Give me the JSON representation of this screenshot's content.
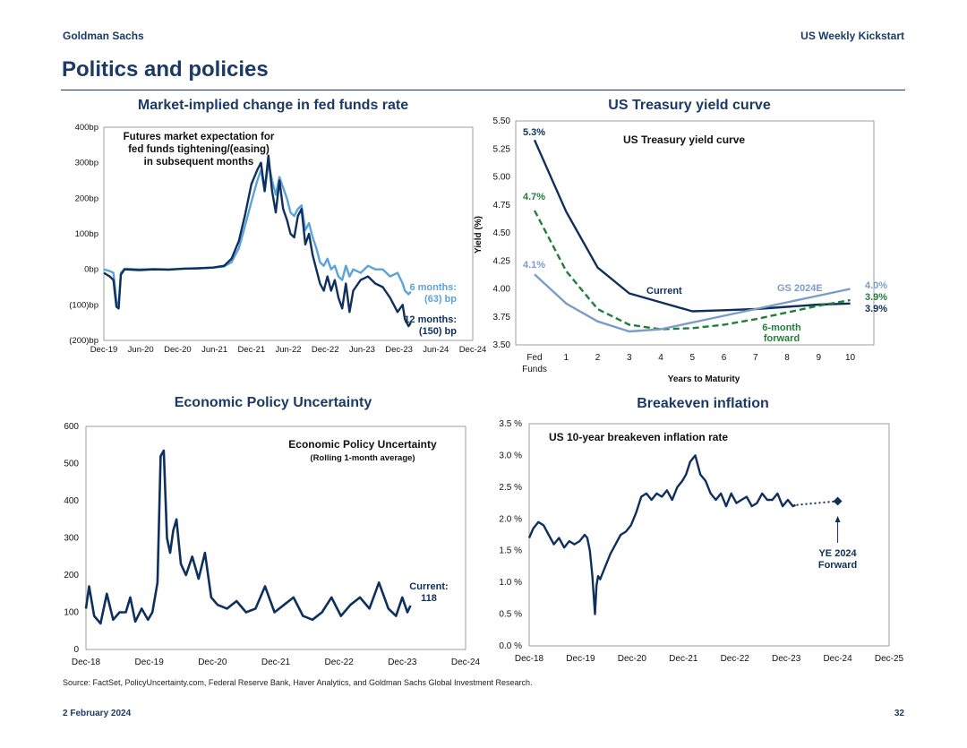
{
  "header": {
    "brand": "Goldman Sachs",
    "report": "US Weekly Kickstart"
  },
  "page_title": "Politics and policies",
  "footer": {
    "source": "Source: FactSet, PolicyUncertainty.com, Federal Reserve Bank, Haver Analytics, and Goldman Sachs Global Investment Research.",
    "date": "2 February 2024",
    "page": "32"
  },
  "colors": {
    "navy": "#0f2f5c",
    "light_blue": "#5ba3d9",
    "steel": "#7c9cc8",
    "green": "#1f7f3a"
  },
  "panel_titles": {
    "fed": "Market-implied change in fed funds rate",
    "yield": "US Treasury yield curve",
    "epu": "Economic Policy Uncertainty",
    "breakeven": "Breakeven inflation"
  },
  "chart_data": [
    {
      "id": "fed_funds",
      "type": "line",
      "title": "Market-implied change in fed funds rate",
      "annotation": [
        "Futures market expectation for",
        "fed funds tightening/(easing)",
        "in subsequent months"
      ],
      "y_tick_labels": [
        "400bp",
        "300bp",
        "200bp",
        "100bp",
        "0bp",
        "(100)bp",
        "(200)bp"
      ],
      "ylim": [
        -200,
        400
      ],
      "x_tick_labels": [
        "Dec-19",
        "Jun-20",
        "Dec-20",
        "Jun-21",
        "Dec-21",
        "Jun-22",
        "Dec-22",
        "Jun-23",
        "Dec-23",
        "Jun-24",
        "Dec-24"
      ],
      "xlim": [
        2019.92,
        2024.92
      ],
      "series": [
        {
          "name": "6 months",
          "end_label": [
            "6 months:",
            "(63) bp"
          ],
          "color": "#5ba3d9",
          "x": [
            2019.92,
            2020.0,
            2020.05,
            2020.09,
            2020.12,
            2020.15,
            2020.2,
            2020.4,
            2020.6,
            2020.8,
            2021.0,
            2021.2,
            2021.4,
            2021.55,
            2021.65,
            2021.75,
            2021.83,
            2021.92,
            2022.0,
            2022.05,
            2022.1,
            2022.15,
            2022.2,
            2022.25,
            2022.3,
            2022.35,
            2022.4,
            2022.45,
            2022.5,
            2022.55,
            2022.6,
            2022.65,
            2022.7,
            2022.75,
            2022.8,
            2022.85,
            2022.9,
            2022.95,
            2023.0,
            2023.05,
            2023.1,
            2023.15,
            2023.2,
            2023.25,
            2023.3,
            2023.4,
            2023.5,
            2023.6,
            2023.7,
            2023.8,
            2023.9,
            2023.97,
            2024.0,
            2024.05,
            2024.08
          ],
          "y": [
            0,
            -5,
            -10,
            -90,
            -100,
            -10,
            2,
            0,
            1,
            0,
            2,
            3,
            5,
            8,
            20,
            60,
            120,
            190,
            250,
            280,
            220,
            300,
            250,
            210,
            260,
            230,
            200,
            160,
            150,
            170,
            180,
            110,
            130,
            90,
            60,
            20,
            10,
            30,
            0,
            10,
            -20,
            -30,
            10,
            -20,
            0,
            -10,
            10,
            0,
            0,
            -20,
            -10,
            -40,
            -60,
            -70,
            -63
          ]
        },
        {
          "name": "12 months",
          "end_label": [
            "12 months:",
            "(150) bp"
          ],
          "color": "#0f2f5c",
          "x": [
            2019.92,
            2020.0,
            2020.05,
            2020.09,
            2020.12,
            2020.15,
            2020.2,
            2020.4,
            2020.6,
            2020.8,
            2021.0,
            2021.2,
            2021.4,
            2021.55,
            2021.65,
            2021.75,
            2021.83,
            2021.92,
            2022.0,
            2022.05,
            2022.1,
            2022.15,
            2022.2,
            2022.25,
            2022.3,
            2022.35,
            2022.4,
            2022.45,
            2022.5,
            2022.55,
            2022.6,
            2022.65,
            2022.7,
            2022.75,
            2022.8,
            2022.85,
            2022.9,
            2022.95,
            2023.0,
            2023.05,
            2023.1,
            2023.15,
            2023.2,
            2023.25,
            2023.3,
            2023.4,
            2023.5,
            2023.6,
            2023.7,
            2023.8,
            2023.9,
            2023.97,
            2024.0,
            2024.05,
            2024.08
          ],
          "y": [
            -10,
            -20,
            -30,
            -105,
            -110,
            -15,
            0,
            -2,
            0,
            -1,
            2,
            3,
            5,
            10,
            30,
            80,
            150,
            240,
            280,
            300,
            220,
            320,
            220,
            160,
            250,
            170,
            140,
            100,
            90,
            150,
            170,
            70,
            100,
            40,
            0,
            -40,
            -60,
            -20,
            -60,
            -30,
            -80,
            -110,
            -40,
            -120,
            -60,
            -30,
            -20,
            -40,
            -50,
            -80,
            -120,
            -100,
            -140,
            -160,
            -150
          ]
        }
      ]
    },
    {
      "id": "yield_curve",
      "type": "line",
      "title": "US Treasury yield curve",
      "inner_title": "US Treasury yield curve",
      "ylabel": "Yield (%)",
      "xlabel": "Years to Maturity",
      "ylim": [
        3.5,
        5.5
      ],
      "y_tick_labels": [
        "5.50",
        "5.25",
        "5.00",
        "4.75",
        "4.50",
        "4.25",
        "4.00",
        "3.75",
        "3.50"
      ],
      "x_tick_labels": [
        "Fed",
        "1",
        "2",
        "3",
        "4",
        "5",
        "6",
        "7",
        "8",
        "9",
        "10"
      ],
      "x_tick_sub": "Funds",
      "x": [
        0,
        1,
        2,
        3,
        4,
        5,
        6,
        7,
        8,
        9,
        10
      ],
      "series": [
        {
          "name": "Current",
          "color": "#0f2f5c",
          "style": "solid",
          "start_label": "5.3%",
          "end_label": "3.9%",
          "x": [
            0,
            1,
            2,
            3,
            4,
            5,
            6,
            7,
            8,
            9,
            10
          ],
          "y": [
            5.33,
            4.69,
            4.19,
            3.96,
            3.88,
            3.8,
            3.81,
            3.82,
            3.84,
            3.86,
            3.87
          ]
        },
        {
          "name": "6-month forward",
          "label_lines": [
            "6-month",
            "forward"
          ],
          "color": "#1f7f3a",
          "style": "dashed",
          "start_label": "4.7%",
          "end_label": "3.9%",
          "x": [
            0,
            1,
            2,
            3,
            4,
            5,
            6,
            7,
            8,
            9,
            10
          ],
          "y": [
            4.7,
            4.16,
            3.82,
            3.68,
            3.64,
            3.65,
            3.68,
            3.73,
            3.79,
            3.85,
            3.9
          ]
        },
        {
          "name": "GS 2024E",
          "color": "#7c9cc8",
          "style": "solid",
          "start_label": "4.1%",
          "end_label": "4.0%",
          "x": [
            0,
            1,
            2,
            3,
            4,
            5,
            6,
            7,
            8,
            9,
            10
          ],
          "y": [
            4.13,
            3.87,
            3.71,
            3.62,
            3.64,
            3.7,
            3.76,
            3.82,
            3.88,
            3.94,
            4.0
          ]
        }
      ]
    },
    {
      "id": "epu",
      "type": "line",
      "title": "Economic Policy Uncertainty",
      "inner_title": "Economic Policy Uncertainty",
      "inner_subtitle": "(Rolling 1-month average)",
      "ylim": [
        0,
        600
      ],
      "y_tick_labels": [
        "600",
        "500",
        "400",
        "300",
        "200",
        "100",
        "0"
      ],
      "x_tick_labels": [
        "Dec-18",
        "Dec-19",
        "Dec-20",
        "Dec-21",
        "Dec-22",
        "Dec-23",
        "Dec-24"
      ],
      "xlim": [
        2018.92,
        2024.92
      ],
      "current_label": [
        "Current:",
        "118"
      ],
      "series": [
        {
          "name": "EPU",
          "color": "#0f2f5c",
          "x": [
            2018.92,
            2018.97,
            2019.05,
            2019.15,
            2019.25,
            2019.35,
            2019.45,
            2019.55,
            2019.62,
            2019.7,
            2019.8,
            2019.9,
            2019.97,
            2020.05,
            2020.1,
            2020.15,
            2020.2,
            2020.25,
            2020.3,
            2020.35,
            2020.42,
            2020.5,
            2020.6,
            2020.7,
            2020.8,
            2020.9,
            2021.0,
            2021.15,
            2021.3,
            2021.45,
            2021.6,
            2021.75,
            2021.9,
            2022.05,
            2022.2,
            2022.35,
            2022.5,
            2022.65,
            2022.8,
            2022.95,
            2023.1,
            2023.25,
            2023.4,
            2023.55,
            2023.7,
            2023.82,
            2023.92,
            2024.0,
            2024.05
          ],
          "y": [
            110,
            170,
            90,
            70,
            150,
            80,
            100,
            100,
            140,
            75,
            110,
            80,
            100,
            180,
            520,
            535,
            300,
            260,
            320,
            350,
            230,
            200,
            250,
            190,
            260,
            140,
            120,
            110,
            130,
            100,
            110,
            170,
            100,
            120,
            140,
            90,
            80,
            100,
            140,
            90,
            120,
            140,
            110,
            180,
            110,
            90,
            140,
            100,
            118
          ]
        }
      ]
    },
    {
      "id": "breakeven",
      "type": "line",
      "title": "Breakeven inflation",
      "inner_title": "US 10-year breakeven inflation rate",
      "ylim": [
        0,
        3.5
      ],
      "y_tick_labels": [
        "3.5 %",
        "3.0 %",
        "2.5 %",
        "2.0 %",
        "1.5 %",
        "1.0 %",
        "0.5 %",
        "0.0 %"
      ],
      "x_tick_labels": [
        "Dec-18",
        "Dec-19",
        "Dec-20",
        "Dec-21",
        "Dec-22",
        "Dec-23",
        "Dec-24",
        "Dec-25"
      ],
      "xlim": [
        2018.92,
        2025.92
      ],
      "forecast_label": [
        "YE 2024",
        "Forward"
      ],
      "forecast": {
        "x": [
          2024.12,
          2024.92
        ],
        "y": [
          2.22,
          2.28
        ]
      },
      "series": [
        {
          "name": "10y breakeven",
          "color": "#0f2f5c",
          "x": [
            2018.92,
            2019.0,
            2019.1,
            2019.2,
            2019.3,
            2019.4,
            2019.5,
            2019.6,
            2019.7,
            2019.8,
            2019.9,
            2020.0,
            2020.05,
            2020.1,
            2020.15,
            2020.2,
            2020.23,
            2020.26,
            2020.3,
            2020.4,
            2020.5,
            2020.6,
            2020.7,
            2020.8,
            2020.9,
            2021.0,
            2021.1,
            2021.2,
            2021.3,
            2021.4,
            2021.5,
            2021.6,
            2021.7,
            2021.8,
            2021.9,
            2021.97,
            2022.05,
            2022.15,
            2022.25,
            2022.35,
            2022.45,
            2022.55,
            2022.65,
            2022.75,
            2022.85,
            2022.95,
            2023.05,
            2023.15,
            2023.25,
            2023.35,
            2023.45,
            2023.55,
            2023.65,
            2023.75,
            2023.85,
            2023.95,
            2024.05,
            2024.1
          ],
          "y": [
            1.7,
            1.85,
            1.95,
            1.9,
            1.75,
            1.6,
            1.7,
            1.55,
            1.65,
            1.6,
            1.65,
            1.75,
            1.7,
            1.5,
            1.1,
            0.5,
            0.95,
            1.1,
            1.05,
            1.25,
            1.45,
            1.6,
            1.75,
            1.8,
            1.9,
            2.1,
            2.35,
            2.4,
            2.3,
            2.4,
            2.35,
            2.45,
            2.3,
            2.5,
            2.6,
            2.7,
            2.9,
            3.0,
            2.7,
            2.6,
            2.4,
            2.3,
            2.4,
            2.2,
            2.4,
            2.25,
            2.3,
            2.35,
            2.2,
            2.25,
            2.4,
            2.3,
            2.3,
            2.4,
            2.2,
            2.3,
            2.2,
            2.22
          ]
        }
      ]
    }
  ]
}
